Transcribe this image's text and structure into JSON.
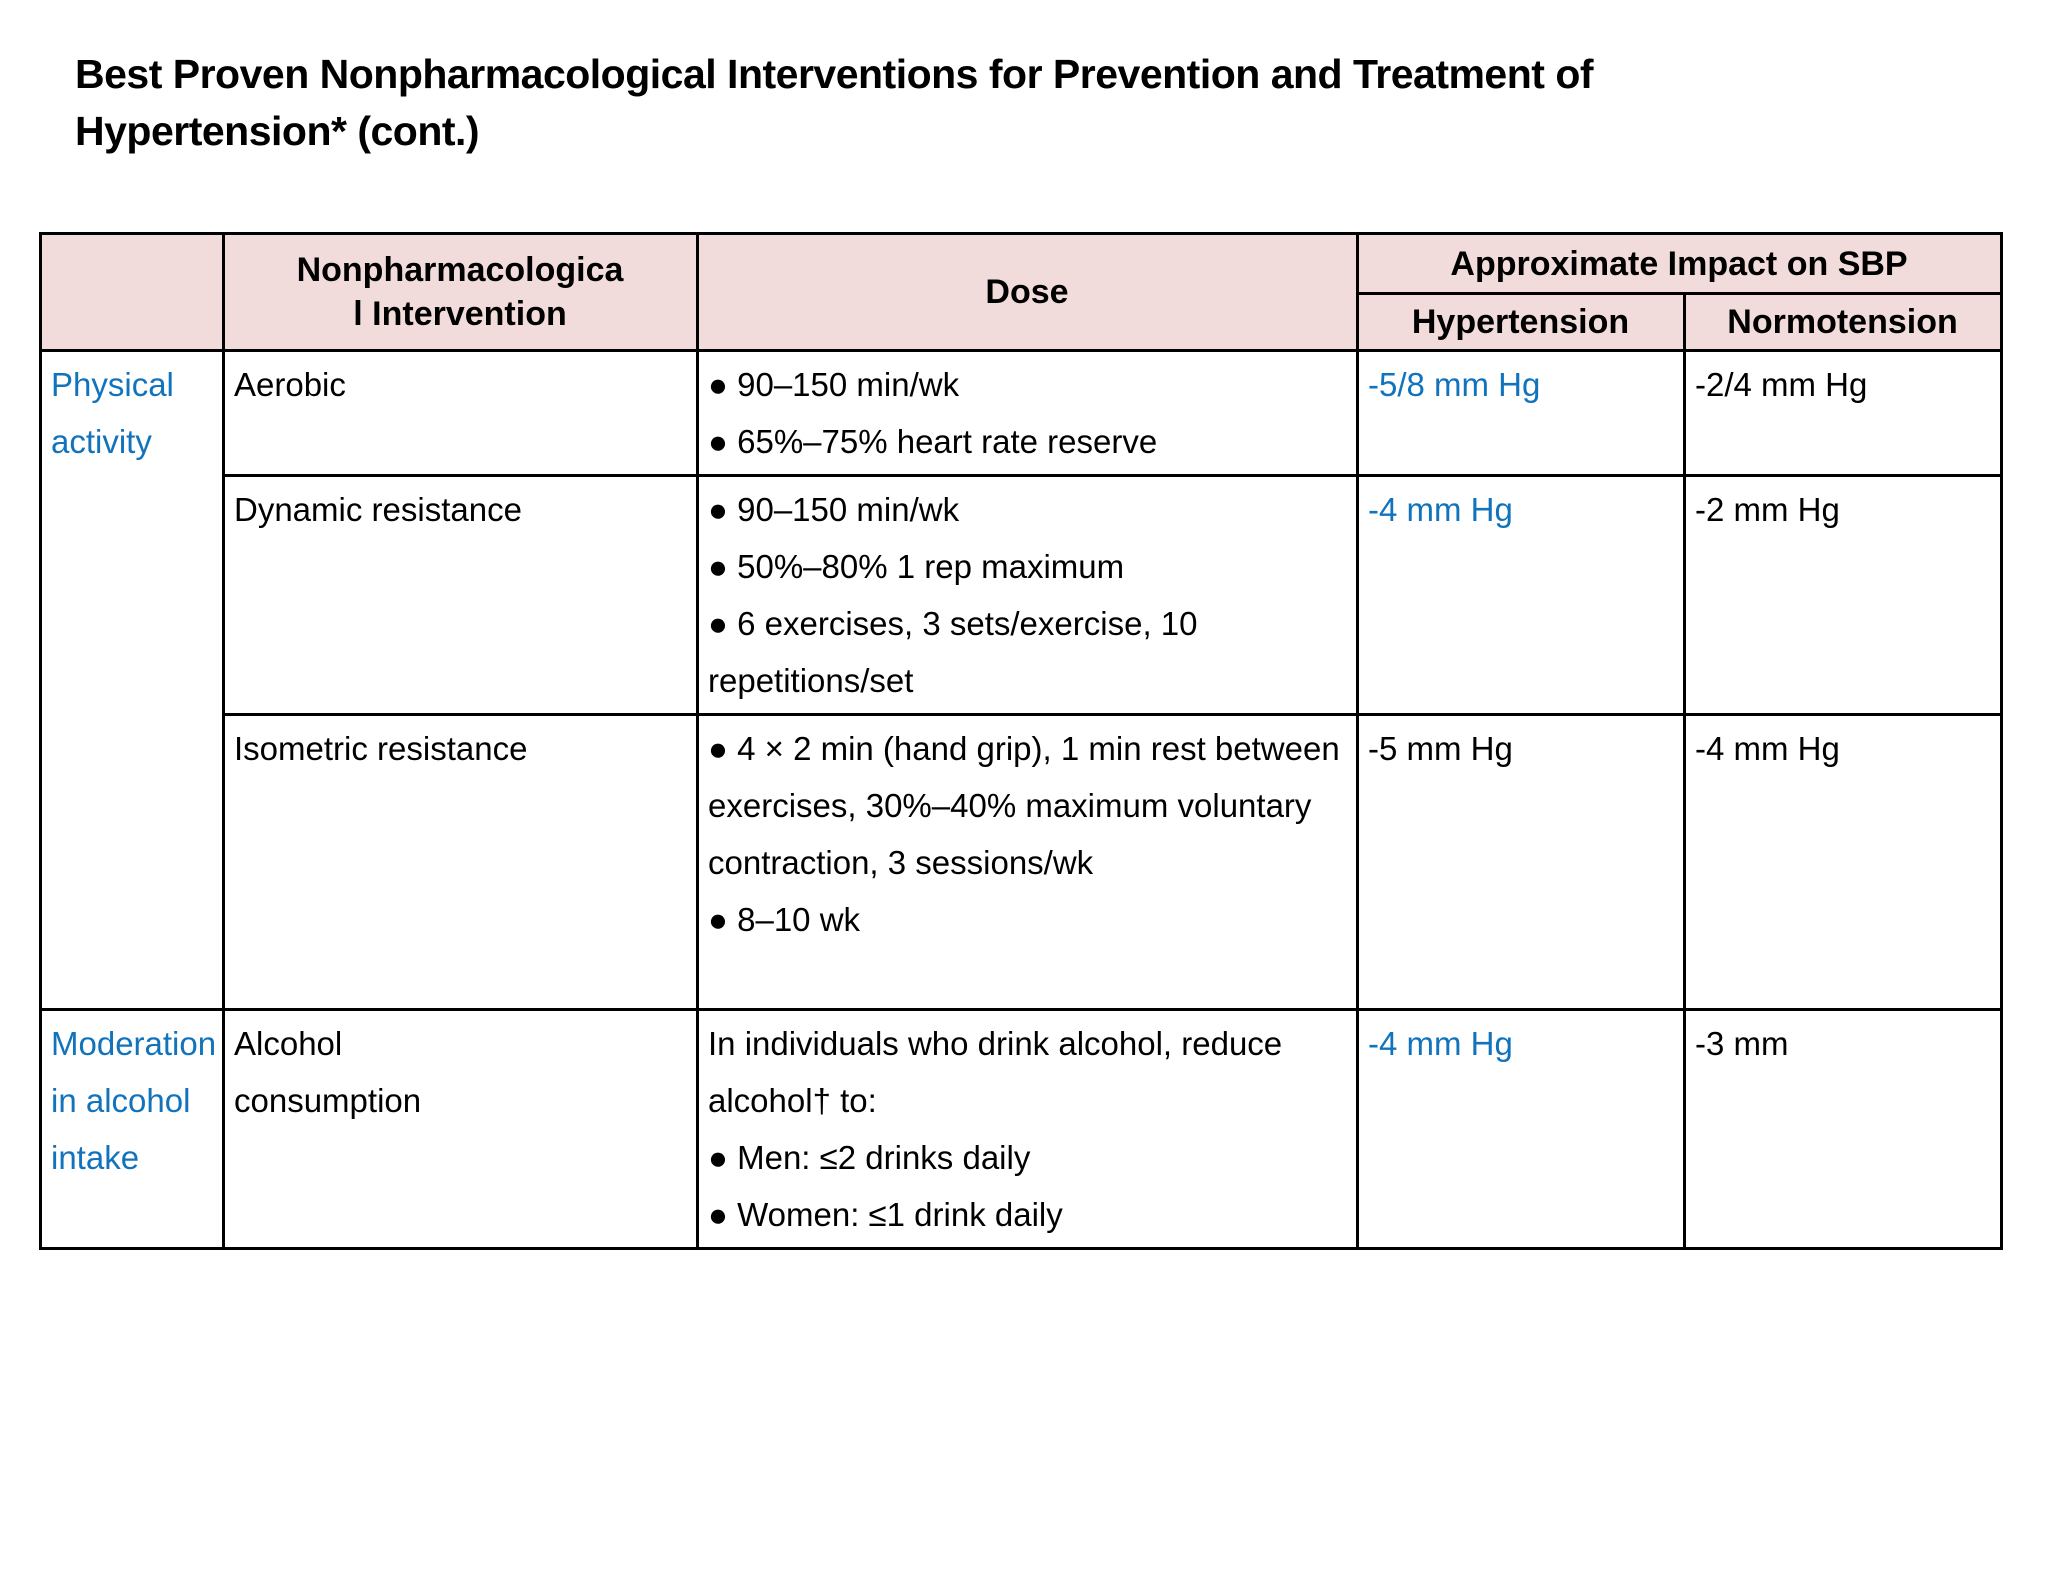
{
  "slide": {
    "title": "Best Proven Nonpharmacological Interventions for Prevention and Treatment of Hypertension* (cont.)",
    "colors": {
      "accent_blue": "#1273bd",
      "header_pink": "#f2dcdb",
      "border_black": "#000000",
      "background": "#ffffff"
    }
  },
  "table": {
    "header": {
      "category": "",
      "intervention_line1": "Nonpharmacologica",
      "intervention_line2": "l Intervention",
      "dose": "Dose",
      "sbp_group": "Approximate Impact on SBP",
      "hypertension": "Hypertension",
      "normotension": "Normotension"
    },
    "rows": [
      {
        "category": "Physical activity",
        "intervention": "Aerobic",
        "dose_bullets": [
          "90–150 min/wk",
          "65%–75% heart rate reserve"
        ],
        "hypertension": "-5/8 mm Hg",
        "hypertension_color": "blue",
        "normotension": "-2/4 mm Hg"
      },
      {
        "category": "",
        "intervention": "Dynamic resistance",
        "dose_bullets": [
          "90–150 min/wk",
          "50%–80% 1 rep maximum",
          "6 exercises, 3 sets/exercise, 10 repetitions/set"
        ],
        "hypertension": "-4 mm Hg",
        "hypertension_color": "blue",
        "normotension": "-2 mm Hg"
      },
      {
        "category": "",
        "intervention": "Isometric resistance",
        "dose_bullets": [
          "4 × 2 min (hand grip), 1 min rest between exercises, 30%–40% maximum voluntary contraction, 3 sessions/wk",
          "8–10 wk"
        ],
        "hypertension": "-5 mm Hg",
        "hypertension_color": "black",
        "normotension": "-4 mm Hg"
      },
      {
        "category": "Moderation in alcohol intake",
        "intervention": "Alcohol consumption",
        "dose_intro": "In individuals who drink alcohol, reduce alcohol† to:",
        "dose_bullets": [
          "Men: ≤2 drinks daily",
          "Women: ≤1 drink daily"
        ],
        "hypertension": "-4 mm Hg",
        "hypertension_color": "blue",
        "normotension": "-3 mm"
      }
    ]
  }
}
